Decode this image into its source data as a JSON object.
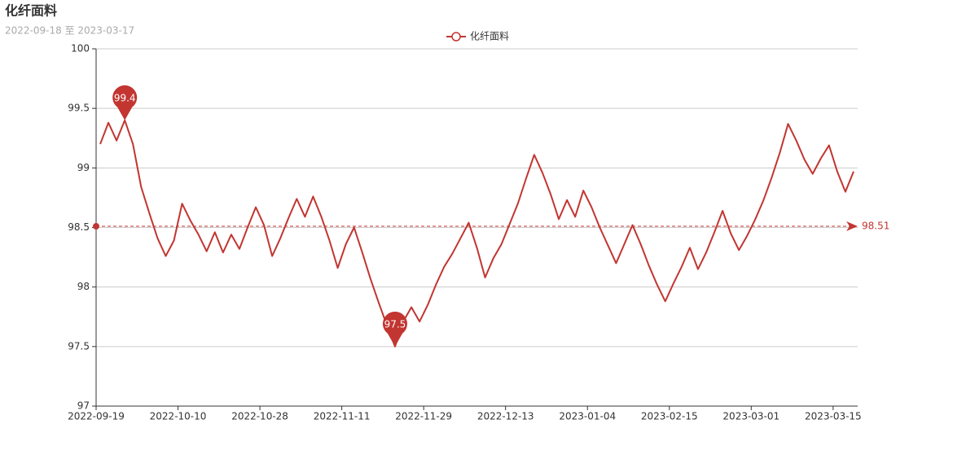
{
  "chart_data": {
    "type": "line",
    "title": "化纤面料",
    "subtitle": "2022-09-18 至 2023-03-17",
    "categories": [
      "2022-09-19",
      null,
      null,
      null,
      null,
      null,
      null,
      null,
      null,
      null,
      "2022-10-10",
      null,
      null,
      null,
      null,
      null,
      null,
      null,
      null,
      null,
      "2022-10-28",
      null,
      null,
      null,
      null,
      null,
      null,
      null,
      null,
      null,
      "2022-11-11",
      null,
      null,
      null,
      null,
      null,
      null,
      null,
      null,
      null,
      "2022-11-29",
      null,
      null,
      null,
      null,
      null,
      null,
      null,
      null,
      null,
      "2022-12-13",
      null,
      null,
      null,
      null,
      null,
      null,
      null,
      null,
      null,
      "2023-01-04",
      null,
      null,
      null,
      null,
      null,
      null,
      null,
      null,
      null,
      "2023-02-15",
      null,
      null,
      null,
      null,
      null,
      null,
      null,
      null,
      null,
      "2023-03-01",
      null,
      null,
      null,
      null,
      null,
      null,
      null,
      null,
      null,
      "2023-03-15",
      null,
      null
    ],
    "series": [
      {
        "name": "化纤面料",
        "color": "#c23531",
        "values": [
          99.2,
          99.38,
          99.23,
          99.4,
          99.2,
          98.84,
          98.62,
          98.41,
          98.26,
          98.39,
          98.7,
          98.56,
          98.44,
          98.3,
          98.46,
          98.29,
          98.44,
          98.32,
          98.5,
          98.67,
          98.52,
          98.26,
          98.41,
          98.58,
          98.74,
          98.59,
          98.76,
          98.59,
          98.39,
          98.16,
          98.36,
          98.5,
          98.29,
          98.07,
          97.87,
          97.68,
          97.5,
          97.71,
          97.83,
          97.71,
          97.85,
          98.02,
          98.17,
          98.28,
          98.41,
          98.54,
          98.33,
          98.08,
          98.24,
          98.36,
          98.53,
          98.7,
          98.91,
          99.11,
          98.96,
          98.78,
          98.57,
          98.73,
          98.59,
          98.81,
          98.67,
          98.5,
          98.35,
          98.2,
          98.36,
          98.52,
          98.36,
          98.18,
          98.02,
          97.88,
          98.03,
          98.17,
          98.33,
          98.15,
          98.29,
          98.46,
          98.64,
          98.45,
          98.31,
          98.43,
          98.57,
          98.73,
          98.92,
          99.13,
          99.37,
          99.23,
          99.07,
          98.95,
          99.08,
          99.19,
          98.97,
          98.8,
          98.97
        ]
      }
    ],
    "mark_points": [
      99.4,
      97.5
    ],
    "mark_line": 98.51,
    "ylim": [
      97,
      100
    ],
    "yticks": [
      97,
      97.5,
      98,
      98.5,
      99,
      99.5,
      100
    ],
    "grid": true
  }
}
